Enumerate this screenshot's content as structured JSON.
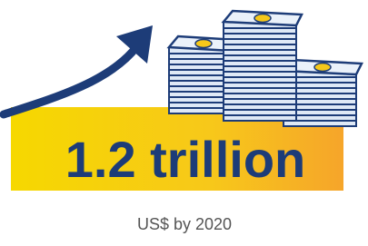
{
  "headline": "1.2 trillion",
  "caption": "US$ by 2020"
}
